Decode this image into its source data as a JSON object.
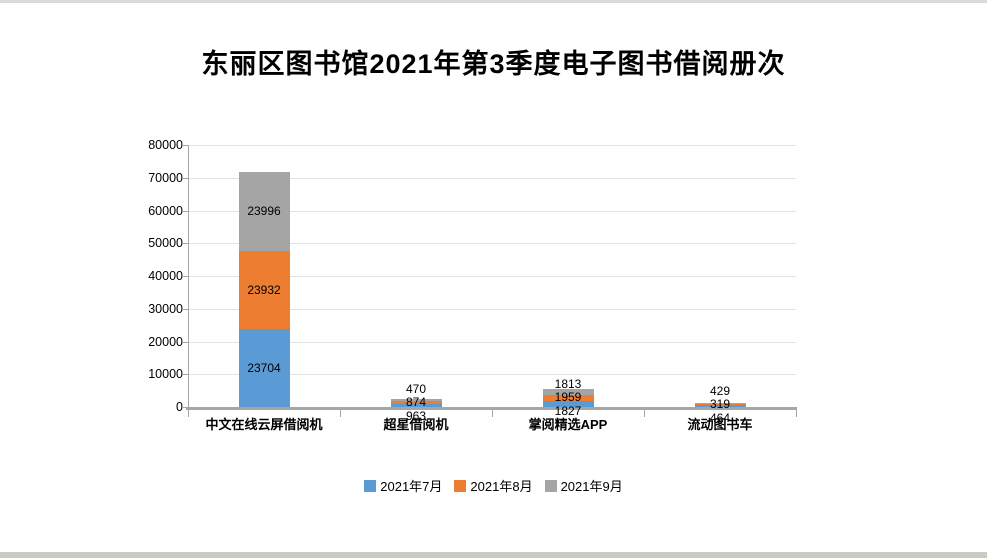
{
  "page": {
    "top_edge_color": "#d7dcd8",
    "bottom_edge_color": "#cbcbc3",
    "background": "#ffffff"
  },
  "chart_data": {
    "type": "bar",
    "stacked": true,
    "title": "东丽区图书馆2021年第3季度电子图书借阅册次",
    "categories": [
      "中文在线云屏借阅机",
      "超星借阅机",
      "掌阅精选APP",
      "流动图书车"
    ],
    "series": [
      {
        "name": "2021年7月",
        "color": "#5B9BD5",
        "values": [
          23704,
          963,
          1827,
          464
        ]
      },
      {
        "name": "2021年8月",
        "color": "#ED7D31",
        "values": [
          23932,
          874,
          1959,
          319
        ]
      },
      {
        "name": "2021年9月",
        "color": "#A5A5A5",
        "values": [
          23996,
          470,
          1813,
          429
        ]
      }
    ],
    "totals": [
      71632,
      2307,
      5599,
      1212
    ],
    "ylim": [
      0,
      80000
    ],
    "ytick_interval": 10000,
    "yticks": [
      "0",
      "10000",
      "20000",
      "30000",
      "40000",
      "50000",
      "60000",
      "70000",
      "80000"
    ],
    "grid": true,
    "data_labels": true,
    "legend_position": "bottom",
    "axis_color": "#a6a6a6",
    "gridline_color": "#e2e2e2",
    "text_color": "#000000"
  }
}
